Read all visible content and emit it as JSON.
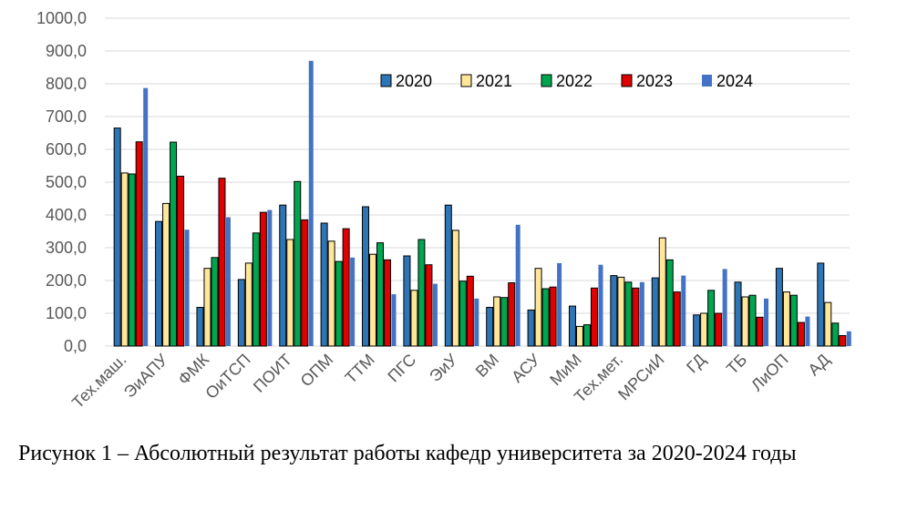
{
  "chart_data": {
    "type": "bar",
    "categories": [
      "Тех.маш.",
      "ЭиАПУ",
      "ФМК",
      "ОиТСП",
      "ПОИТ",
      "ОПМ",
      "ТТМ",
      "ПГС",
      "ЭиУ",
      "ВМ",
      "АСУ",
      "МиМ",
      "Тех.мет.",
      "МРСиИ",
      "ГД",
      "ТБ",
      "ЛиОП",
      "АД"
    ],
    "series": [
      {
        "name": "2020",
        "color": "#2e75b6",
        "values": [
          665,
          380,
          118,
          203,
          430,
          375,
          425,
          275,
          430,
          118,
          110,
          122,
          215,
          208,
          95,
          195,
          237,
          253
        ]
      },
      {
        "name": "2021",
        "color": "#ffe699",
        "values": [
          528,
          435,
          237,
          253,
          325,
          320,
          280,
          170,
          353,
          150,
          237,
          60,
          210,
          330,
          100,
          150,
          165,
          133
        ]
      },
      {
        "name": "2022",
        "color": "#00a550",
        "values": [
          525,
          622,
          270,
          345,
          502,
          258,
          315,
          325,
          198,
          148,
          175,
          65,
          195,
          263,
          170,
          155,
          155,
          70
        ]
      },
      {
        "name": "2023",
        "color": "#e00000",
        "values": [
          623,
          518,
          512,
          408,
          385,
          358,
          263,
          248,
          213,
          193,
          180,
          177,
          177,
          165,
          100,
          88,
          72,
          32
        ]
      },
      {
        "name": "2024",
        "color": "#4472c4",
        "values": [
          787,
          355,
          393,
          415,
          870,
          270,
          158,
          190,
          145,
          370,
          253,
          248,
          195,
          215,
          235,
          145,
          90,
          45
        ]
      }
    ],
    "yticks": [
      "0,0",
      "100,0",
      "200,0",
      "300,0",
      "400,0",
      "500,0",
      "600,0",
      "700,0",
      "800,0",
      "900,0",
      "1000,0"
    ],
    "ylim": [
      0,
      1000
    ],
    "grid": true,
    "legend_position": "top-right",
    "xlabel": "",
    "ylabel": ""
  },
  "caption": "Рисунок 1 – Абсолютный результат работы кафедр университета за 2020-2024 годы"
}
